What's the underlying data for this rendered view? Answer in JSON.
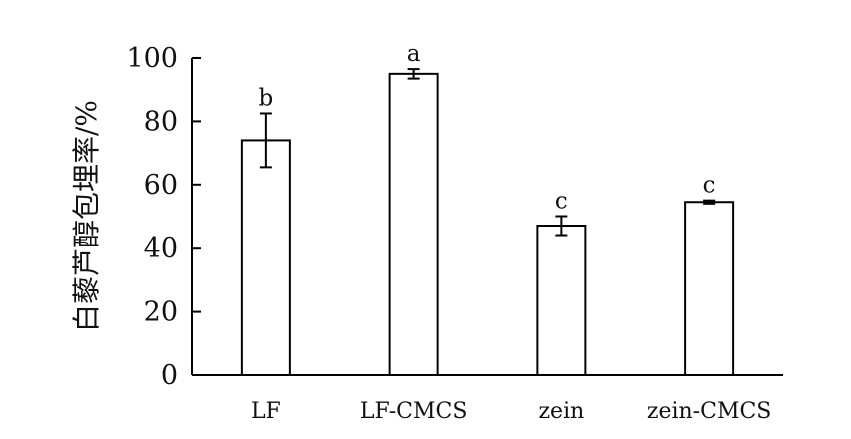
{
  "chart_data": {
    "type": "bar",
    "title": "",
    "xlabel": "",
    "ylabel": "白藜芦醇包埋率/%",
    "ylim": [
      0,
      100
    ],
    "yticks": [
      0,
      20,
      40,
      60,
      80,
      100
    ],
    "grid": false,
    "categories": [
      "LF",
      "LF-CMCS",
      "zein",
      "zein-CMCS"
    ],
    "values": [
      74,
      95,
      47,
      54.5
    ],
    "errors": [
      8.5,
      1.5,
      3,
      0.5
    ],
    "significance": [
      "b",
      "a",
      "c",
      "c"
    ],
    "colors": {
      "bar_fill": "#ffffff",
      "bar_stroke": "#000000",
      "axis": "#000000"
    }
  }
}
